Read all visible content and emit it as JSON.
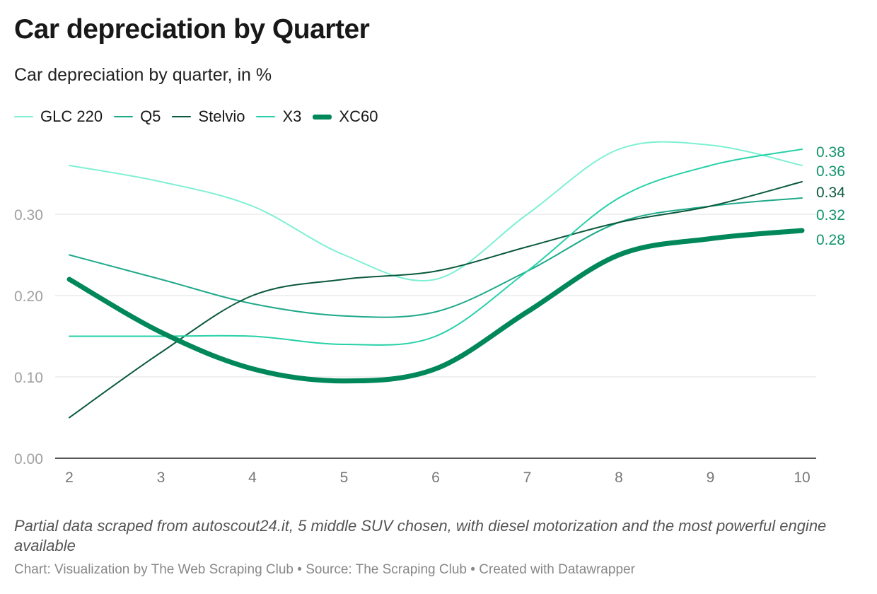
{
  "chart_data": {
    "type": "line",
    "title": "Car depreciation by Quarter",
    "subtitle": "Car depreciation by quarter, in %",
    "x": [
      2,
      3,
      4,
      5,
      6,
      7,
      8,
      9,
      10
    ],
    "xlim": [
      2,
      10
    ],
    "ylim": [
      0,
      0.4
    ],
    "yticks": [
      "0.00",
      "0.10",
      "0.20",
      "0.30"
    ],
    "ytick_values": [
      0,
      0.1,
      0.2,
      0.3
    ],
    "xticks": [
      "2",
      "3",
      "4",
      "5",
      "6",
      "7",
      "8",
      "9",
      "10"
    ],
    "legend_position": "top-left",
    "series": [
      {
        "name": "GLC 220",
        "color": "#7ef0d4",
        "width": 2,
        "values": [
          0.36,
          0.34,
          0.31,
          0.25,
          0.22,
          0.3,
          0.38,
          0.385,
          0.36
        ],
        "end_label": "0.36",
        "label_color": "#12946c"
      },
      {
        "name": "Q5",
        "color": "#1fa98a",
        "width": 2,
        "values": [
          0.25,
          0.22,
          0.19,
          0.175,
          0.18,
          0.23,
          0.29,
          0.31,
          0.32
        ],
        "end_label": "0.32",
        "label_color": "#12946c"
      },
      {
        "name": "Stelvio",
        "color": "#0b5a3c",
        "width": 2,
        "values": [
          0.05,
          0.13,
          0.2,
          0.22,
          0.23,
          0.26,
          0.29,
          0.31,
          0.34
        ],
        "end_label": "0.34",
        "label_color": "#0b5a3c"
      },
      {
        "name": "X3",
        "color": "#27d0a8",
        "width": 2,
        "values": [
          0.15,
          0.15,
          0.15,
          0.14,
          0.15,
          0.23,
          0.32,
          0.36,
          0.38
        ],
        "end_label": "0.38",
        "label_color": "#12946c"
      },
      {
        "name": "XC60",
        "color": "#00875a",
        "width": 7,
        "values": [
          0.22,
          0.155,
          0.11,
          0.095,
          0.11,
          0.18,
          0.25,
          0.27,
          0.28
        ],
        "end_label": "0.28",
        "label_color": "#12946c"
      }
    ]
  },
  "note": "Partial data scraped from autoscout24.it, 5 middle SUV chosen, with diesel motorization and the most powerful engine available",
  "credit": "Chart: Visualization by The Web Scraping Club • Source: The Scraping Club • Created with Datawrapper"
}
